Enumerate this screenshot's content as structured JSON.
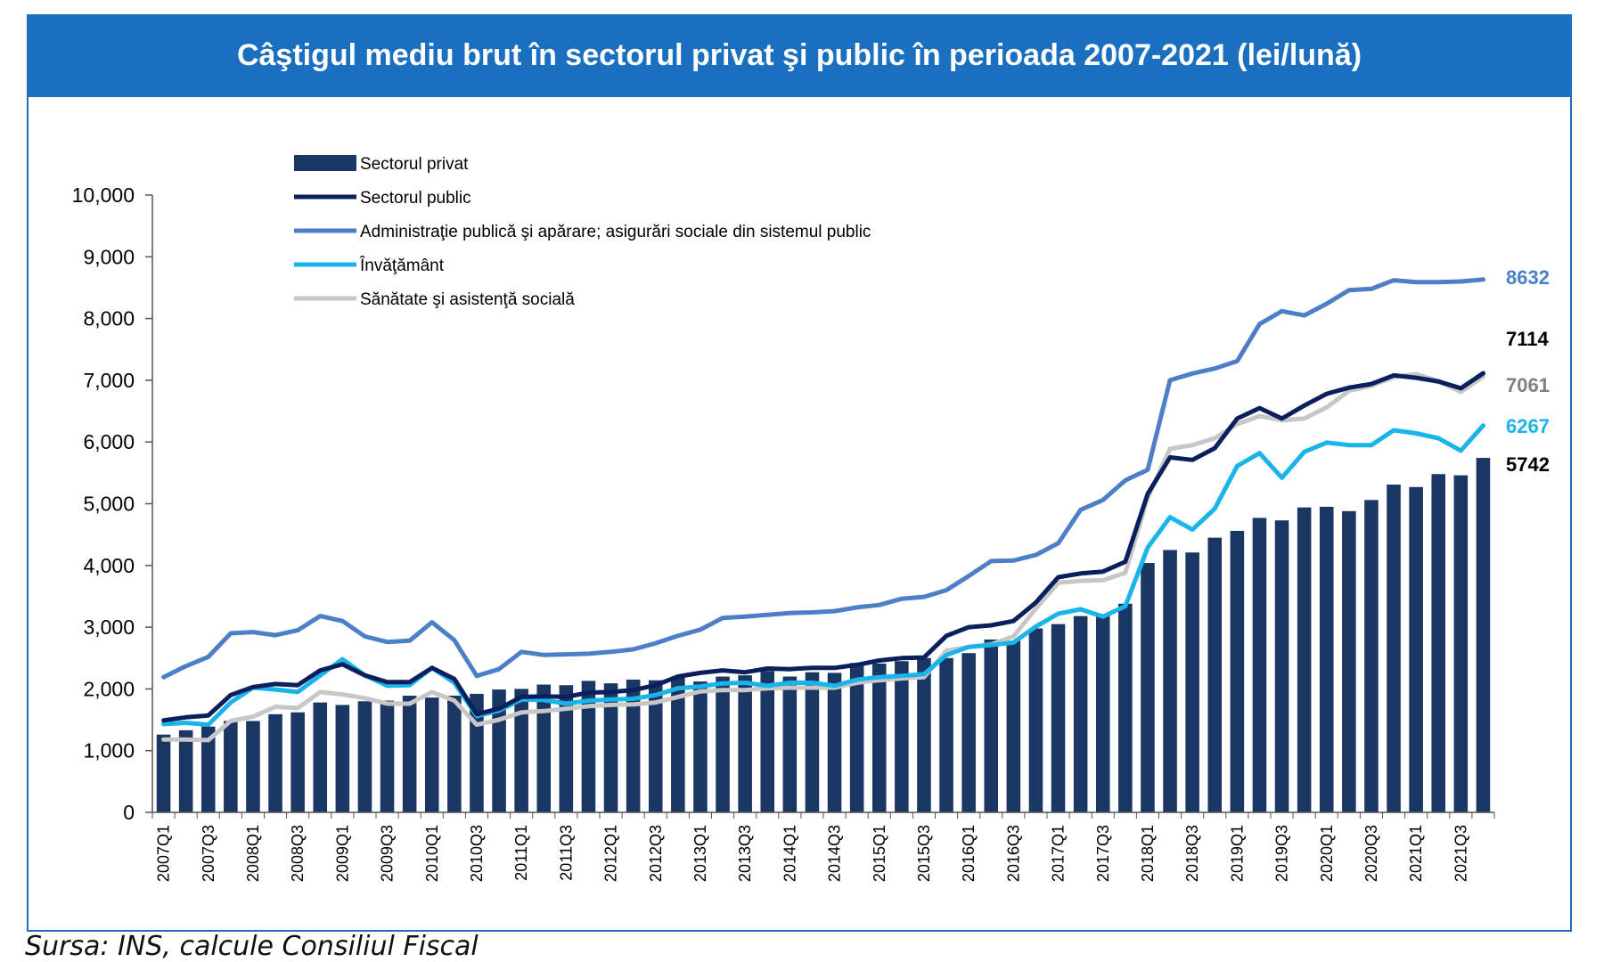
{
  "chart_data": {
    "type": "bar",
    "title": "Câştigul mediu brut în sectorul privat şi public în perioada 2007-2021 (lei/lună)",
    "source": "Sursa: INS, calcule Consiliul Fiscal",
    "ylim": [
      0,
      10000
    ],
    "yticks": [
      "0",
      "1,000",
      "2,000",
      "3,000",
      "4,000",
      "5,000",
      "6,000",
      "7,000",
      "8,000",
      "9,000",
      "10,000"
    ],
    "ytick_values": [
      0,
      1000,
      2000,
      3000,
      4000,
      5000,
      6000,
      7000,
      8000,
      9000,
      10000
    ],
    "x": [
      "2007Q1",
      "2007Q2",
      "2007Q3",
      "2007Q4",
      "2008Q1",
      "2008Q2",
      "2008Q3",
      "2008Q4",
      "2009Q1",
      "2009Q2",
      "2009Q3",
      "2009Q4",
      "2010Q1",
      "2010Q2",
      "2010Q3",
      "2010Q4",
      "2011Q1",
      "2011Q2",
      "2011Q3",
      "2011Q4",
      "2012Q1",
      "2012Q2",
      "2012Q3",
      "2012Q4",
      "2013Q1",
      "2013Q2",
      "2013Q3",
      "2013Q4",
      "2014Q1",
      "2014Q2",
      "2014Q3",
      "2014Q4",
      "2015Q1",
      "2015Q2",
      "2015Q3",
      "2015Q4",
      "2016Q1",
      "2016Q2",
      "2016Q3",
      "2016Q4",
      "2017Q1",
      "2017Q2",
      "2017Q3",
      "2017Q4",
      "2018Q1",
      "2018Q2",
      "2018Q3",
      "2018Q4",
      "2019Q1",
      "2019Q2",
      "2019Q3",
      "2019Q4",
      "2020Q1",
      "2020Q2",
      "2020Q3",
      "2020Q4",
      "2021Q1",
      "2021Q2",
      "2021Q3",
      "2021Q4"
    ],
    "xtick_labels": [
      "2007Q1",
      "2007Q3",
      "2008Q1",
      "2008Q3",
      "2009Q1",
      "2009Q3",
      "2010Q1",
      "2010Q3",
      "2011Q1",
      "2011Q3",
      "2012Q1",
      "2012Q3",
      "2013Q1",
      "2013Q3",
      "2014Q1",
      "2014Q3",
      "2015Q1",
      "2015Q3",
      "2016Q1",
      "2016Q3",
      "2017Q1",
      "2017Q3",
      "2018Q1",
      "2018Q3",
      "2019Q1",
      "2019Q3",
      "2020Q1",
      "2020Q3",
      "2021Q1",
      "2021Q3"
    ],
    "grid": false,
    "legend": "top-left",
    "series": [
      {
        "name": "Sectorul privat",
        "kind": "bar",
        "color": "#1a3763",
        "end_label": "5742",
        "end_color": "#000000",
        "values": [
          1260,
          1330,
          1390,
          1480,
          1480,
          1590,
          1620,
          1780,
          1740,
          1800,
          1810,
          1890,
          1860,
          1890,
          1920,
          1990,
          2000,
          2070,
          2060,
          2130,
          2090,
          2150,
          2140,
          2180,
          2120,
          2200,
          2220,
          2290,
          2200,
          2270,
          2260,
          2420,
          2410,
          2450,
          2500,
          2500,
          2580,
          2800,
          2780,
          2980,
          3050,
          3180,
          3200,
          3380,
          4040,
          4250,
          4210,
          4450,
          4560,
          4770,
          4730,
          4940,
          4950,
          4880,
          5060,
          5310,
          5270,
          5480,
          5460,
          5742
        ]
      },
      {
        "name": "Sectorul public",
        "kind": "line",
        "color": "#0a1f5c",
        "end_label": "7114",
        "end_color": "#000000",
        "values": [
          1490,
          1540,
          1570,
          1900,
          2030,
          2080,
          2060,
          2300,
          2400,
          2220,
          2110,
          2110,
          2340,
          2160,
          1590,
          1680,
          1870,
          1880,
          1870,
          1940,
          1950,
          1980,
          2060,
          2200,
          2260,
          2300,
          2270,
          2330,
          2320,
          2340,
          2340,
          2390,
          2460,
          2500,
          2510,
          2860,
          3000,
          3030,
          3100,
          3400,
          3810,
          3870,
          3900,
          4060,
          5160,
          5750,
          5710,
          5900,
          6380,
          6550,
          6380,
          6590,
          6780,
          6880,
          6940,
          7080,
          7040,
          6980,
          6870,
          7114
        ]
      },
      {
        "name": "Administraţie publică şi apărare; asigurări sociale din sistemul public",
        "kind": "line",
        "color": "#4d7fc8",
        "end_label": "8632",
        "end_color": "#4d7fc8",
        "values": [
          2190,
          2370,
          2520,
          2900,
          2920,
          2870,
          2950,
          3180,
          3100,
          2850,
          2760,
          2780,
          3080,
          2790,
          2210,
          2320,
          2600,
          2550,
          2560,
          2570,
          2600,
          2640,
          2740,
          2860,
          2960,
          3150,
          3170,
          3200,
          3230,
          3240,
          3260,
          3320,
          3360,
          3460,
          3490,
          3600,
          3830,
          4070,
          4080,
          4170,
          4360,
          4900,
          5060,
          5380,
          5550,
          7000,
          7110,
          7190,
          7310,
          7910,
          8120,
          8050,
          8240,
          8460,
          8480,
          8620,
          8590,
          8590,
          8600,
          8632
        ]
      },
      {
        "name": "Învăţământ",
        "kind": "line",
        "color": "#18b4ea",
        "end_label": "6267",
        "end_color": "#18b4ea",
        "values": [
          1430,
          1450,
          1420,
          1780,
          2020,
          1990,
          1950,
          2220,
          2480,
          2220,
          2050,
          2060,
          2340,
          2100,
          1560,
          1650,
          1830,
          1820,
          1760,
          1810,
          1830,
          1840,
          1900,
          2010,
          2040,
          2090,
          2100,
          2050,
          2100,
          2100,
          2050,
          2150,
          2190,
          2210,
          2240,
          2550,
          2680,
          2710,
          2750,
          3010,
          3220,
          3290,
          3170,
          3340,
          4290,
          4780,
          4580,
          4920,
          5610,
          5820,
          5420,
          5840,
          5990,
          5950,
          5950,
          6190,
          6140,
          6060,
          5860,
          6267
        ]
      },
      {
        "name": "Sănătate şi asistenţă socială",
        "kind": "line",
        "color": "#c7c7c7",
        "end_label": "7061",
        "end_color": "#808080",
        "values": [
          1180,
          1180,
          1170,
          1480,
          1550,
          1710,
          1690,
          1950,
          1910,
          1850,
          1760,
          1760,
          1950,
          1810,
          1420,
          1500,
          1620,
          1640,
          1680,
          1720,
          1740,
          1750,
          1780,
          1870,
          1960,
          1980,
          1980,
          2010,
          2020,
          2020,
          2020,
          2100,
          2140,
          2170,
          2190,
          2620,
          2680,
          2720,
          2850,
          3300,
          3720,
          3750,
          3760,
          3880,
          5100,
          5890,
          5950,
          6060,
          6290,
          6420,
          6350,
          6380,
          6560,
          6830,
          6910,
          7050,
          7100,
          6990,
          6810,
          7061
        ]
      }
    ]
  }
}
